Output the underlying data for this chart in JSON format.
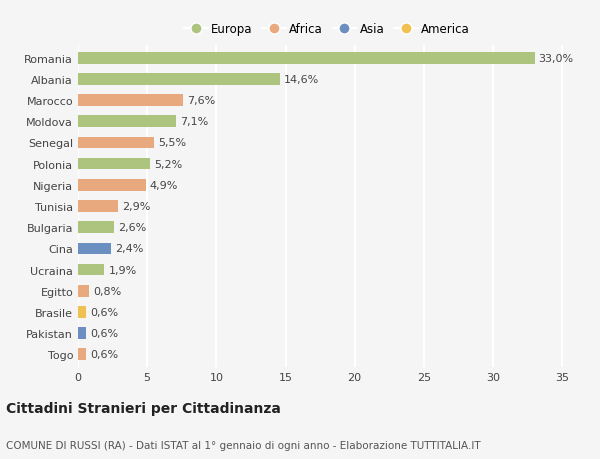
{
  "categories": [
    "Romania",
    "Albania",
    "Marocco",
    "Moldova",
    "Senegal",
    "Polonia",
    "Nigeria",
    "Tunisia",
    "Bulgaria",
    "Cina",
    "Ucraina",
    "Egitto",
    "Brasile",
    "Pakistan",
    "Togo"
  ],
  "values": [
    33.0,
    14.6,
    7.6,
    7.1,
    5.5,
    5.2,
    4.9,
    2.9,
    2.6,
    2.4,
    1.9,
    0.8,
    0.6,
    0.6,
    0.6
  ],
  "labels": [
    "33,0%",
    "14,6%",
    "7,6%",
    "7,1%",
    "5,5%",
    "5,2%",
    "4,9%",
    "2,9%",
    "2,6%",
    "2,4%",
    "1,9%",
    "0,8%",
    "0,6%",
    "0,6%",
    "0,6%"
  ],
  "continents": [
    "Europa",
    "Europa",
    "Africa",
    "Europa",
    "Africa",
    "Europa",
    "Africa",
    "Africa",
    "Europa",
    "Asia",
    "Europa",
    "Africa",
    "America",
    "Asia",
    "Africa"
  ],
  "continent_colors": {
    "Europa": "#adc47e",
    "Africa": "#e8a97e",
    "Asia": "#6a8fc0",
    "America": "#f0c050"
  },
  "legend_order": [
    "Europa",
    "Africa",
    "Asia",
    "America"
  ],
  "xlim": [
    0,
    36
  ],
  "xticks": [
    0,
    5,
    10,
    15,
    20,
    25,
    30,
    35
  ],
  "background_color": "#f5f5f5",
  "grid_color": "#ffffff",
  "title": "Cittadini Stranieri per Cittadinanza",
  "subtitle": "COMUNE DI RUSSI (RA) - Dati ISTAT al 1° gennaio di ogni anno - Elaborazione TUTTITALIA.IT",
  "bar_height": 0.55,
  "label_fontsize": 8,
  "tick_fontsize": 8,
  "title_fontsize": 10,
  "subtitle_fontsize": 7.5
}
